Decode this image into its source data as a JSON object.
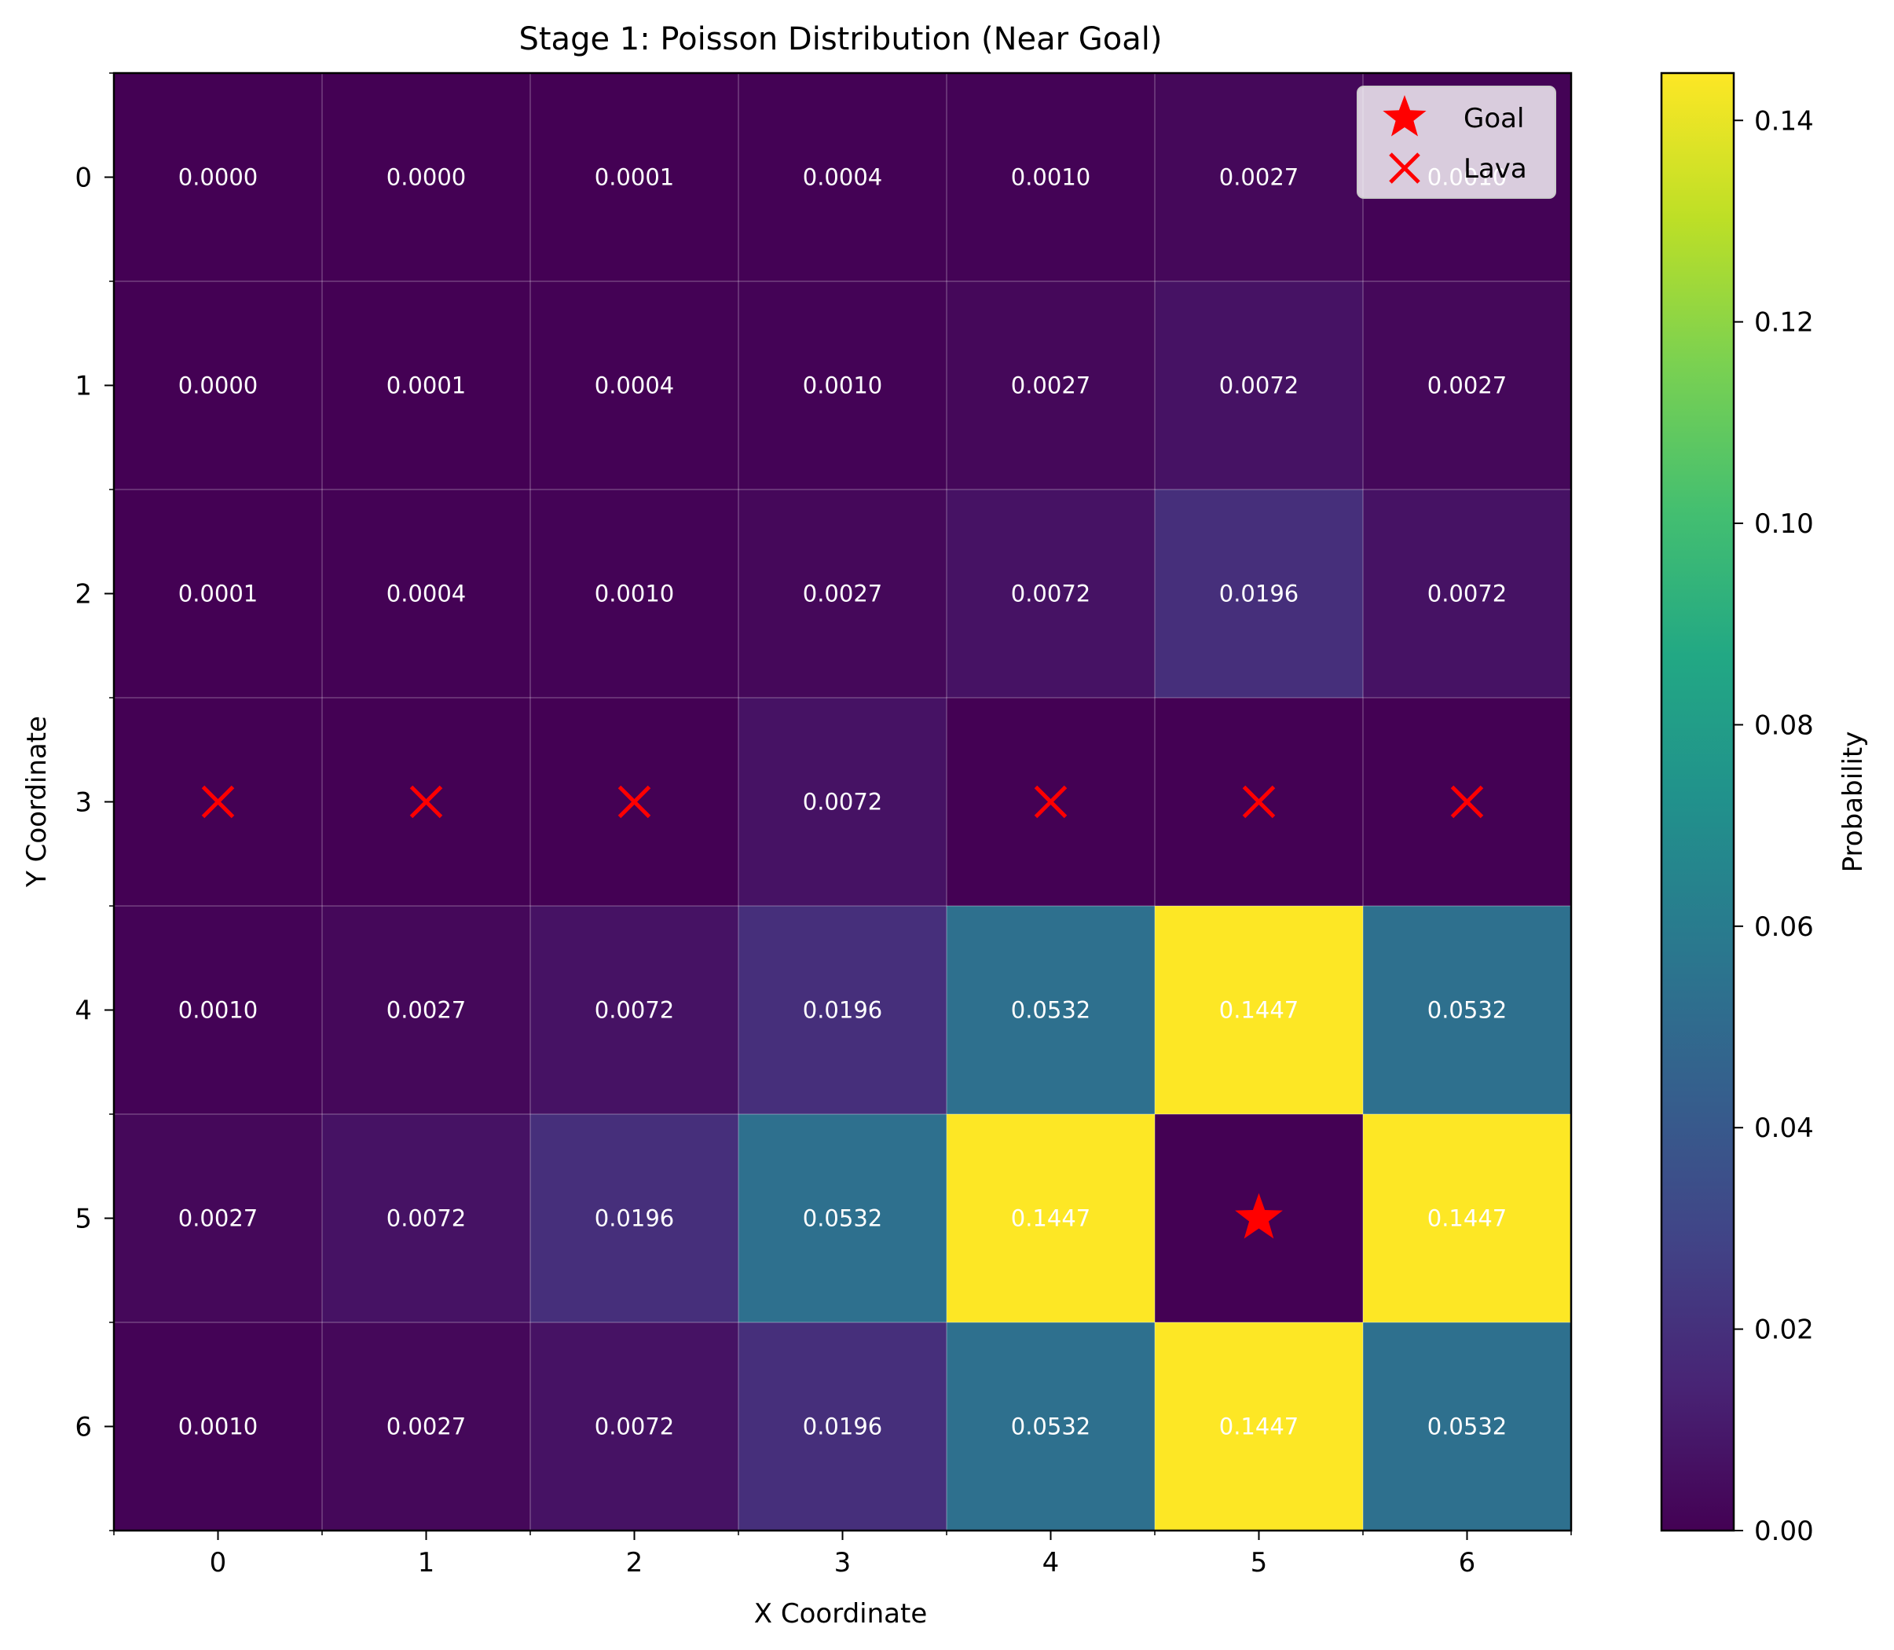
{
  "chart_data": {
    "type": "heatmap",
    "title": "Stage 1: Poisson Distribution (Near Goal)",
    "xlabel": "X Coordinate",
    "ylabel": "Y Coordinate",
    "x_ticks": [
      "0",
      "1",
      "2",
      "3",
      "4",
      "5",
      "6"
    ],
    "y_ticks": [
      "0",
      "1",
      "2",
      "3",
      "4",
      "5",
      "6"
    ],
    "values": [
      [
        0.0,
        0.0,
        0.0001,
        0.0004,
        0.001,
        0.0027,
        0.001
      ],
      [
        0.0,
        0.0001,
        0.0004,
        0.001,
        0.0027,
        0.0072,
        0.0027
      ],
      [
        0.0001,
        0.0004,
        0.001,
        0.0027,
        0.0072,
        0.0196,
        0.0072
      ],
      [
        0.0,
        0.0,
        0.0,
        0.0072,
        0.0,
        0.0,
        0.0
      ],
      [
        0.001,
        0.0027,
        0.0072,
        0.0196,
        0.0532,
        0.1447,
        0.0532
      ],
      [
        0.0027,
        0.0072,
        0.0196,
        0.0532,
        0.1447,
        0.0,
        0.1447
      ],
      [
        0.001,
        0.0027,
        0.0072,
        0.0196,
        0.0532,
        0.1447,
        0.0532
      ]
    ],
    "cell_labels": [
      [
        "0.0000",
        "0.0000",
        "0.0001",
        "0.0004",
        "0.0010",
        "0.0027",
        "0.0010"
      ],
      [
        "0.0000",
        "0.0001",
        "0.0004",
        "0.0010",
        "0.0027",
        "0.0072",
        "0.0027"
      ],
      [
        "0.0001",
        "0.0004",
        "0.0010",
        "0.0027",
        "0.0072",
        "0.0196",
        "0.0072"
      ],
      [
        "",
        "",
        "",
        "0.0072",
        "",
        "",
        ""
      ],
      [
        "0.0010",
        "0.0027",
        "0.0072",
        "0.0196",
        "0.0532",
        "0.1447",
        "0.0532"
      ],
      [
        "0.0027",
        "0.0072",
        "0.0196",
        "0.0532",
        "0.1447",
        "",
        "0.1447"
      ],
      [
        "0.0010",
        "0.0027",
        "0.0072",
        "0.0196",
        "0.0532",
        "0.1447",
        "0.0532"
      ]
    ],
    "goal": {
      "x": 5,
      "y": 5
    },
    "lava": [
      {
        "x": 0,
        "y": 3
      },
      {
        "x": 1,
        "y": 3
      },
      {
        "x": 2,
        "y": 3
      },
      {
        "x": 4,
        "y": 3
      },
      {
        "x": 5,
        "y": 3
      },
      {
        "x": 6,
        "y": 3
      }
    ],
    "legend": {
      "placement": "top-right",
      "entries": [
        "Goal",
        "Lava"
      ]
    },
    "colorbar": {
      "label": "Probability",
      "range": [
        0,
        0.1447
      ],
      "ticks": [
        "0.00",
        "0.02",
        "0.04",
        "0.06",
        "0.08",
        "0.10",
        "0.12",
        "0.14"
      ],
      "colormap": "viridis"
    },
    "marker_color": "#ff0000",
    "grid": true
  }
}
